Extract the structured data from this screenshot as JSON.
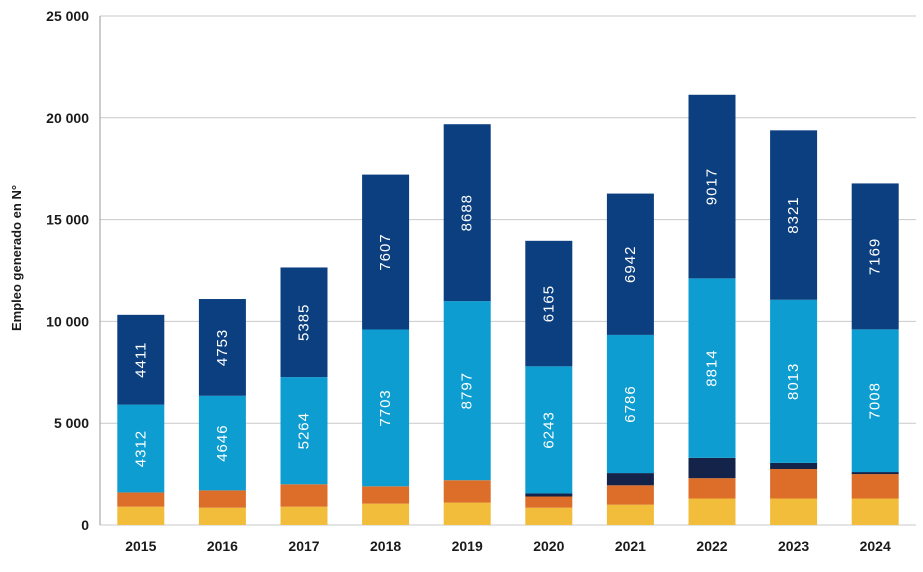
{
  "chart_data": {
    "type": "bar",
    "stacked": true,
    "ylabel": "Empleo generado en N°",
    "xlabel": "",
    "ylim": [
      0,
      25000
    ],
    "yticks": [
      0,
      5000,
      10000,
      15000,
      20000,
      25000
    ],
    "ytick_labels": [
      "0",
      "5 000",
      "10 000",
      "15 000",
      "20 000",
      "25 000"
    ],
    "grid": true,
    "categories": [
      "2015",
      "2016",
      "2017",
      "2018",
      "2019",
      "2020",
      "2021",
      "2022",
      "2023",
      "2024"
    ],
    "series": [
      {
        "color": "#f2bd3b",
        "values": [
          900,
          850,
          900,
          1050,
          1100,
          850,
          1000,
          1300,
          1300,
          1300
        ]
      },
      {
        "color": "#dc6e2a",
        "values": [
          700,
          850,
          1100,
          850,
          1100,
          550,
          950,
          1000,
          1450,
          1200
        ]
      },
      {
        "color": "#13234a",
        "values": [
          0,
          0,
          0,
          0,
          0,
          150,
          600,
          1000,
          300,
          100
        ]
      },
      {
        "color": "#0e9dd1",
        "values": [
          4312,
          4646,
          5264,
          7703,
          8797,
          6243,
          6786,
          8814,
          8013,
          7008
        ],
        "show_labels": true
      },
      {
        "color": "#0b3f7f",
        "values": [
          4411,
          4753,
          5385,
          7607,
          8688,
          6165,
          6942,
          9017,
          8321,
          7169
        ],
        "show_labels": true
      }
    ]
  }
}
